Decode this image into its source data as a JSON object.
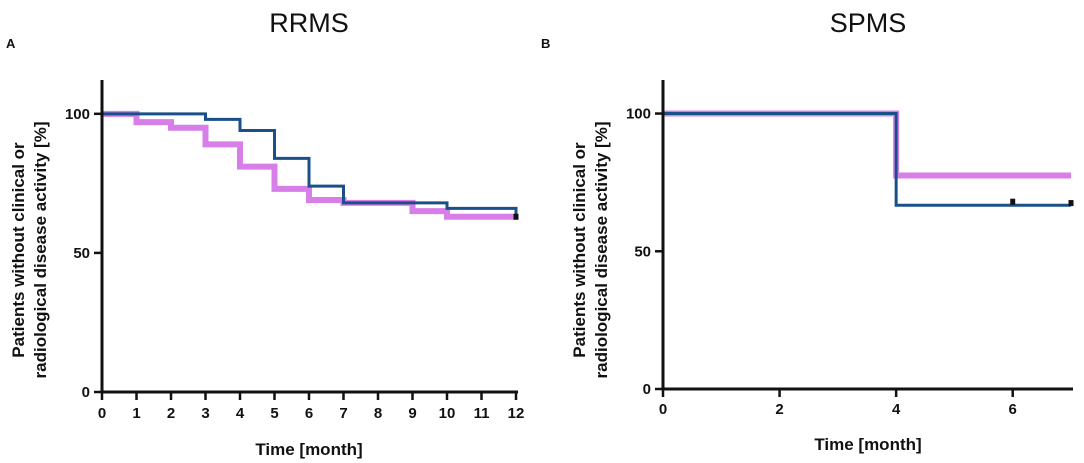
{
  "chart_data": [
    {
      "type": "line",
      "step": true,
      "panel_letter": "A",
      "title": "RRMS",
      "xlabel": "Time [month]",
      "ylabel_lines": [
        "Patients without clinical or",
        "radiological disease activity [%]"
      ],
      "xlim": [
        0,
        12
      ],
      "ylim": [
        0,
        110
      ],
      "xticks": [
        0,
        1,
        2,
        3,
        4,
        5,
        6,
        7,
        8,
        9,
        10,
        11,
        12
      ],
      "yticks": [
        0,
        50,
        100
      ],
      "series": [
        {
          "name": "Series 1 (pink)",
          "color": "#d77ee8",
          "x": [
            0,
            1,
            2,
            3,
            4,
            5,
            6,
            7,
            9,
            10,
            12
          ],
          "y": [
            100,
            97,
            95,
            89,
            81,
            73,
            69,
            68,
            65,
            63,
            63
          ]
        },
        {
          "name": "Series 2 (blue)",
          "color": "#1a5089",
          "x": [
            0,
            3,
            4,
            5,
            6,
            7,
            10,
            12
          ],
          "y": [
            100,
            98,
            94,
            84,
            74,
            68,
            66,
            63
          ]
        }
      ],
      "censor_marks": [
        {
          "x": 12,
          "y": 63
        }
      ]
    },
    {
      "type": "line",
      "step": true,
      "panel_letter": "B",
      "title": "SPMS",
      "xlabel": "Time [month]",
      "ylabel_lines": [
        "Patients without clinical or",
        "radiological disease activity [%]"
      ],
      "xlim": [
        0,
        7
      ],
      "ylim": [
        0,
        110
      ],
      "xticks": [
        0,
        2,
        4,
        6
      ],
      "yticks": [
        0,
        50,
        100
      ],
      "series": [
        {
          "name": "Series 1 (pink)",
          "color": "#d77ee8",
          "x": [
            0,
            4,
            7
          ],
          "y": [
            100,
            77.5,
            77.5
          ]
        },
        {
          "name": "Series 2 (blue)",
          "color": "#1a5089",
          "x": [
            0,
            4,
            7
          ],
          "y": [
            100,
            66.7,
            66.7
          ]
        }
      ],
      "censor_marks": [
        {
          "x": 6,
          "y": 68
        },
        {
          "x": 7,
          "y": 67.5
        }
      ]
    }
  ]
}
